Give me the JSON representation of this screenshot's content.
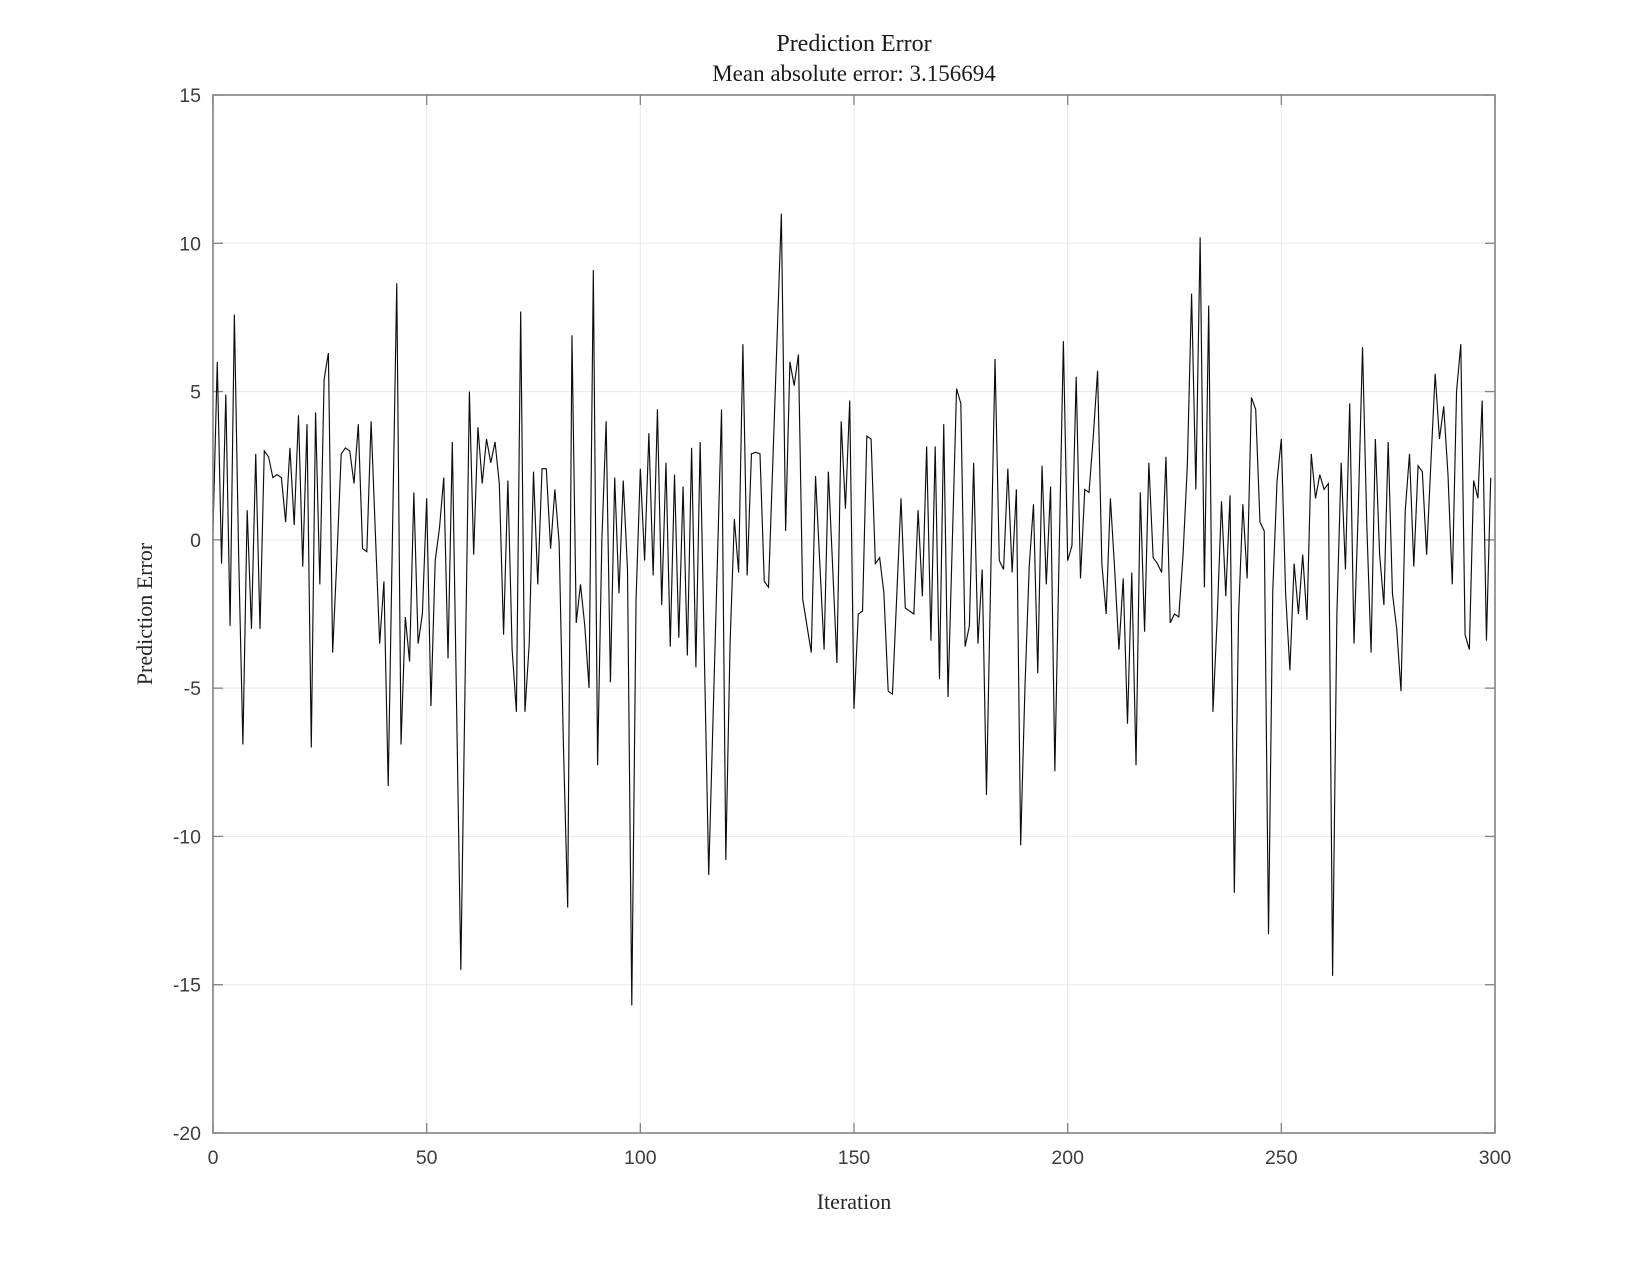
{
  "header": {
    "title": "Prediction Error",
    "subtitle": "Mean absolute error: 3.156694"
  },
  "colors": {
    "background": "#ffffff",
    "axis_box": "#828282",
    "gridline": "#e9e9e9",
    "line": "#0d0d0d",
    "tick_label": "#3d3d3d",
    "title_text": "#1a1a1a"
  },
  "chart_data": {
    "type": "line",
    "title": "Prediction Error",
    "subtitle": "Mean absolute error: 3.156694",
    "xlabel": "Iteration",
    "ylabel": "Prediction Error",
    "xlim": [
      0,
      300
    ],
    "ylim": [
      -20,
      15
    ],
    "grid": true,
    "legend": "none",
    "x_ticks": [
      0,
      50,
      100,
      150,
      200,
      250,
      300
    ],
    "y_ticks": [
      -20,
      -15,
      -10,
      -5,
      0,
      5,
      10,
      15
    ],
    "x_start": 0,
    "x_step": 1,
    "values": [
      0.3,
      6.0,
      -0.8,
      4.9,
      -2.9,
      7.6,
      -0.5,
      -6.9,
      1.0,
      -3.0,
      2.9,
      -3.0,
      3.0,
      2.8,
      2.1,
      2.2,
      2.1,
      0.6,
      3.1,
      0.5,
      4.2,
      -0.9,
      3.9,
      -7.0,
      4.3,
      -1.5,
      5.4,
      6.3,
      -3.8,
      -0.6,
      2.9,
      3.1,
      3.0,
      1.9,
      3.9,
      -0.3,
      -0.4,
      4.0,
      0.2,
      -3.5,
      -1.4,
      -8.3,
      0.2,
      8.65,
      -6.9,
      -2.6,
      -4.1,
      1.6,
      -3.5,
      -2.5,
      1.4,
      -5.6,
      -0.7,
      0.4,
      2.1,
      -4.0,
      3.3,
      -5.6,
      -14.5,
      -4.7,
      5.0,
      -0.5,
      3.8,
      1.9,
      3.4,
      2.6,
      3.3,
      1.9,
      -3.2,
      2.0,
      -3.7,
      -5.8,
      7.7,
      -5.8,
      -3.5,
      2.3,
      -1.5,
      2.4,
      2.4,
      -0.3,
      1.7,
      -0.1,
      -6.9,
      -12.4,
      6.9,
      -2.8,
      -1.5,
      -2.9,
      -5.0,
      9.1,
      -7.6,
      0.0,
      4.0,
      -4.8,
      2.1,
      -1.8,
      2.0,
      -1.0,
      -15.7,
      -2.0,
      2.4,
      -0.7,
      3.6,
      -1.2,
      4.4,
      -2.2,
      2.6,
      -3.6,
      2.2,
      -3.3,
      1.8,
      -3.9,
      3.1,
      -4.3,
      3.3,
      -4.0,
      -11.3,
      -6.1,
      -0.9,
      4.4,
      -10.8,
      -3.5,
      0.7,
      -1.1,
      6.6,
      -1.2,
      2.9,
      2.95,
      2.9,
      -1.4,
      -1.6,
      2.6,
      6.8,
      11.0,
      0.3,
      6.0,
      5.2,
      6.25,
      -2.0,
      -2.9,
      -3.8,
      2.15,
      -0.8,
      -3.7,
      2.3,
      -0.9,
      -4.15,
      4.0,
      1.05,
      4.7,
      -5.7,
      -2.5,
      -2.4,
      3.5,
      3.4,
      -0.8,
      -0.6,
      -1.8,
      -5.1,
      -5.2,
      -1.9,
      1.4,
      -2.3,
      -2.4,
      -2.5,
      1.0,
      -1.9,
      3.15,
      -3.4,
      3.15,
      -4.7,
      3.9,
      -5.3,
      -0.1,
      5.1,
      4.6,
      -3.6,
      -2.9,
      2.6,
      -3.5,
      -1.0,
      -8.6,
      -1.2,
      6.1,
      -0.7,
      -1.0,
      2.4,
      -1.1,
      1.7,
      -10.3,
      -5.0,
      -0.9,
      1.2,
      -4.5,
      2.5,
      -1.5,
      1.8,
      -7.8,
      -0.5,
      6.7,
      -0.7,
      -0.2,
      5.5,
      -1.3,
      1.7,
      1.6,
      3.5,
      5.7,
      -0.8,
      -2.5,
      1.4,
      -1.0,
      -3.7,
      -1.3,
      -6.2,
      -1.1,
      -7.6,
      1.6,
      -3.1,
      2.6,
      -0.6,
      -0.8,
      -1.1,
      2.8,
      -2.8,
      -2.5,
      -2.6,
      -0.5,
      2.5,
      8.3,
      1.7,
      10.2,
      -1.6,
      7.9,
      -5.8,
      -2.6,
      1.3,
      -1.9,
      1.5,
      -11.9,
      -2.5,
      1.2,
      -1.3,
      4.8,
      4.4,
      0.6,
      0.3,
      -13.3,
      -1.7,
      2.0,
      3.4,
      -1.8,
      -4.4,
      -0.8,
      -2.5,
      -0.5,
      -2.7,
      2.9,
      1.4,
      2.2,
      1.7,
      1.9,
      -14.7,
      -2.5,
      2.6,
      -1.0,
      4.6,
      -3.5,
      1.0,
      6.5,
      0.5,
      -3.8,
      3.4,
      -0.5,
      -2.2,
      3.3,
      -1.8,
      -3.0,
      -5.1,
      1.0,
      2.9,
      -0.9,
      2.5,
      2.3,
      -0.5,
      2.6,
      5.6,
      3.4,
      4.5,
      2.2,
      -1.5,
      5.0,
      6.6,
      -3.2,
      -3.7,
      2.0,
      1.4,
      4.7,
      -3.4,
      2.1
    ]
  }
}
